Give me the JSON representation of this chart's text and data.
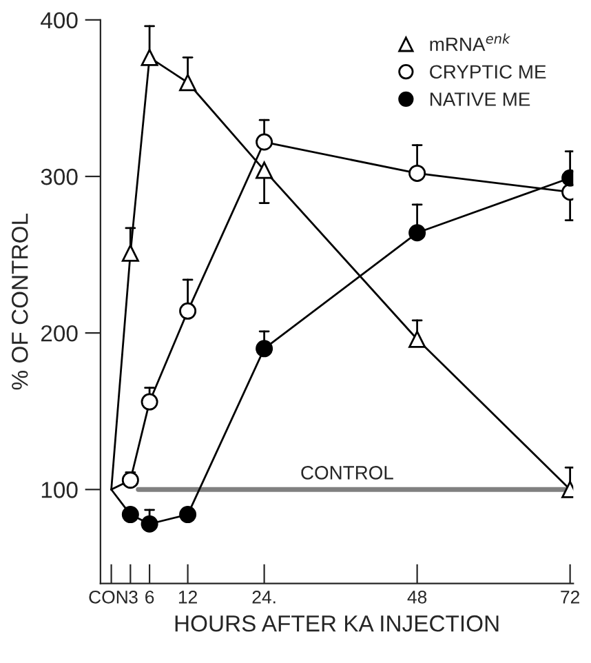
{
  "chart_data": {
    "type": "line",
    "xlabel": "HOURS AFTER KA INJECTION",
    "ylabel": "% OF CONTROL",
    "xlim": [
      -1.7,
      72.5
    ],
    "ylim": [
      40,
      400
    ],
    "xticks": [
      {
        "value": 0,
        "label": "CON"
      },
      3,
      6,
      12,
      {
        "value": 24,
        "label": "24."
      },
      48,
      72
    ],
    "yticks": [
      100,
      200,
      300,
      400
    ],
    "legend": "top right",
    "grid": false,
    "ref_lines": [
      {
        "axis": "y",
        "value": 100,
        "label": "CONTROL",
        "color": "#808080"
      }
    ],
    "series": [
      {
        "name": "mRNA$^{enk}$",
        "color": "#000000",
        "marker": "triangle",
        "colors": [
          "#ffffff",
          "#ffffff",
          "#ffffff",
          "#ffffff",
          "#ffffff",
          "#ffffff",
          "#ffffff"
        ],
        "x": [
          0,
          3,
          6,
          12,
          24,
          48,
          72
        ],
        "values": [
          100,
          251,
          376,
          360,
          304,
          196,
          100
        ],
        "errors": [
          null,
          [
            251,
            267
          ],
          [
            376,
            396
          ],
          [
            360,
            376
          ],
          [
            283,
            304
          ],
          [
            196,
            208
          ],
          [
            100,
            114
          ]
        ]
      },
      {
        "name": "CRYPTIC ME",
        "color": "#000000",
        "marker": "circle",
        "colors": [
          "#ffffff",
          "#ffffff",
          "#ffffff",
          "#ffffff",
          "#ffffff",
          "#ffffff",
          "#ffffff"
        ],
        "x": [
          0,
          3,
          6,
          12,
          24,
          48,
          72
        ],
        "values": [
          100,
          106,
          156,
          214,
          322,
          302,
          290
        ],
        "errors": [
          null,
          [
            106,
            111
          ],
          [
            156,
            165
          ],
          [
            214,
            234
          ],
          [
            322,
            336
          ],
          [
            302,
            320
          ],
          [
            272,
            290
          ]
        ]
      },
      {
        "name": "NATIVE ME",
        "color": "#000000",
        "marker": "circle",
        "colors": [
          "#000000",
          "#000000",
          "#000000",
          "#000000",
          "#000000",
          "#000000",
          "#000000"
        ],
        "x": [
          0,
          3,
          6,
          12,
          24,
          48,
          72
        ],
        "values": [
          100,
          84,
          78,
          84,
          190,
          264,
          299
        ],
        "errors": [
          null,
          null,
          [
            78,
            87
          ],
          null,
          [
            190,
            201
          ],
          [
            264,
            282
          ],
          [
            299,
            316
          ]
        ]
      }
    ]
  }
}
